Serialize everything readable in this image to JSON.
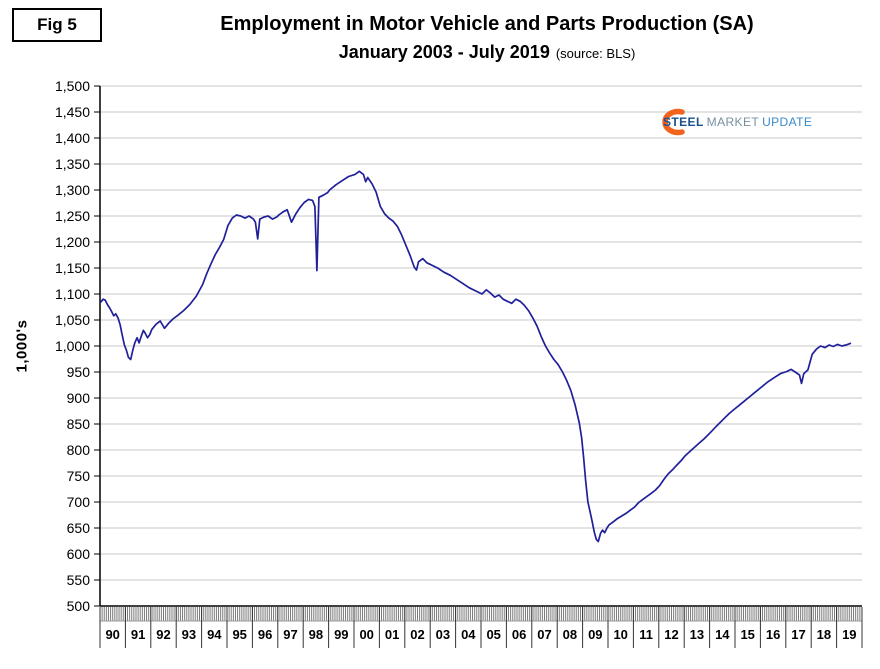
{
  "fig_label": "Fig 5",
  "header": {
    "title": "Employment in Motor Vehicle and Parts Production (SA)",
    "subtitle": "January 2003 - July 2019",
    "source": "(source: BLS)"
  },
  "logo": {
    "word1": "STEEL",
    "word2": "MARKET",
    "word3": "UPDATE",
    "swoosh_color": "#f2641e"
  },
  "chart_data": {
    "type": "line",
    "title": "Employment in Motor Vehicle and Parts Production (SA)",
    "subtitle": "January 2003 - July 2019",
    "source": "BLS",
    "ylabel": "1,000's",
    "ylim": [
      500,
      1500
    ],
    "ytick_step": 50,
    "grid": true,
    "legend_position": "none",
    "line_color": "#20209a",
    "grid_color": "#c8c8c8",
    "x_years": [
      "90",
      "91",
      "92",
      "93",
      "94",
      "95",
      "96",
      "97",
      "98",
      "99",
      "00",
      "01",
      "02",
      "03",
      "04",
      "05",
      "06",
      "07",
      "08",
      "09",
      "10",
      "11",
      "12",
      "13",
      "14",
      "15",
      "16",
      "17",
      "18",
      "19"
    ],
    "series": [
      {
        "name": "Employment in motor vehicle and parts production (thousands, SA)",
        "points": [
          [
            1990.0,
            1085
          ],
          [
            1990.08,
            1090
          ],
          [
            1990.17,
            1088
          ],
          [
            1990.25,
            1080
          ],
          [
            1990.33,
            1074
          ],
          [
            1990.42,
            1066
          ],
          [
            1990.5,
            1058
          ],
          [
            1990.58,
            1062
          ],
          [
            1990.67,
            1054
          ],
          [
            1990.75,
            1042
          ],
          [
            1990.83,
            1022
          ],
          [
            1990.92,
            1002
          ],
          [
            1991.0,
            992
          ],
          [
            1991.08,
            978
          ],
          [
            1991.17,
            974
          ],
          [
            1991.25,
            992
          ],
          [
            1991.33,
            1006
          ],
          [
            1991.42,
            1016
          ],
          [
            1991.5,
            1006
          ],
          [
            1991.58,
            1018
          ],
          [
            1991.67,
            1030
          ],
          [
            1991.75,
            1024
          ],
          [
            1991.83,
            1016
          ],
          [
            1991.92,
            1022
          ],
          [
            1992.0,
            1032
          ],
          [
            1992.17,
            1042
          ],
          [
            1992.33,
            1048
          ],
          [
            1992.5,
            1034
          ],
          [
            1992.67,
            1044
          ],
          [
            1992.83,
            1052
          ],
          [
            1993.0,
            1058
          ],
          [
            1993.25,
            1068
          ],
          [
            1993.5,
            1080
          ],
          [
            1993.75,
            1096
          ],
          [
            1994.0,
            1118
          ],
          [
            1994.17,
            1140
          ],
          [
            1994.33,
            1158
          ],
          [
            1994.5,
            1176
          ],
          [
            1994.67,
            1190
          ],
          [
            1994.83,
            1205
          ],
          [
            1995.0,
            1232
          ],
          [
            1995.17,
            1246
          ],
          [
            1995.33,
            1252
          ],
          [
            1995.5,
            1250
          ],
          [
            1995.67,
            1246
          ],
          [
            1995.83,
            1250
          ],
          [
            1996.0,
            1244
          ],
          [
            1996.08,
            1238
          ],
          [
            1996.17,
            1206
          ],
          [
            1996.25,
            1244
          ],
          [
            1996.42,
            1248
          ],
          [
            1996.58,
            1250
          ],
          [
            1996.75,
            1244
          ],
          [
            1996.92,
            1248
          ],
          [
            1997.0,
            1252
          ],
          [
            1997.17,
            1258
          ],
          [
            1997.33,
            1262
          ],
          [
            1997.5,
            1238
          ],
          [
            1997.67,
            1254
          ],
          [
            1997.83,
            1266
          ],
          [
            1998.0,
            1276
          ],
          [
            1998.17,
            1282
          ],
          [
            1998.33,
            1280
          ],
          [
            1998.42,
            1268
          ],
          [
            1998.5,
            1145
          ],
          [
            1998.58,
            1286
          ],
          [
            1998.75,
            1290
          ],
          [
            1998.92,
            1295
          ],
          [
            1999.0,
            1300
          ],
          [
            1999.25,
            1310
          ],
          [
            1999.5,
            1318
          ],
          [
            1999.75,
            1326
          ],
          [
            2000.0,
            1330
          ],
          [
            2000.17,
            1336
          ],
          [
            2000.33,
            1330
          ],
          [
            2000.42,
            1316
          ],
          [
            2000.5,
            1324
          ],
          [
            2000.67,
            1312
          ],
          [
            2000.83,
            1296
          ],
          [
            2001.0,
            1268
          ],
          [
            2001.17,
            1254
          ],
          [
            2001.33,
            1246
          ],
          [
            2001.5,
            1240
          ],
          [
            2001.67,
            1230
          ],
          [
            2001.83,
            1214
          ],
          [
            2002.0,
            1194
          ],
          [
            2002.17,
            1174
          ],
          [
            2002.33,
            1152
          ],
          [
            2002.42,
            1146
          ],
          [
            2002.5,
            1162
          ],
          [
            2002.67,
            1168
          ],
          [
            2002.83,
            1160
          ],
          [
            2003.0,
            1156
          ],
          [
            2003.25,
            1150
          ],
          [
            2003.5,
            1142
          ],
          [
            2003.75,
            1136
          ],
          [
            2004.0,
            1128
          ],
          [
            2004.25,
            1120
          ],
          [
            2004.5,
            1112
          ],
          [
            2004.75,
            1106
          ],
          [
            2005.0,
            1100
          ],
          [
            2005.17,
            1108
          ],
          [
            2005.33,
            1102
          ],
          [
            2005.5,
            1094
          ],
          [
            2005.67,
            1098
          ],
          [
            2005.83,
            1090
          ],
          [
            2006.0,
            1086
          ],
          [
            2006.17,
            1082
          ],
          [
            2006.33,
            1090
          ],
          [
            2006.5,
            1086
          ],
          [
            2006.67,
            1078
          ],
          [
            2006.83,
            1068
          ],
          [
            2007.0,
            1054
          ],
          [
            2007.17,
            1038
          ],
          [
            2007.33,
            1018
          ],
          [
            2007.5,
            1000
          ],
          [
            2007.67,
            986
          ],
          [
            2007.83,
            974
          ],
          [
            2008.0,
            964
          ],
          [
            2008.17,
            950
          ],
          [
            2008.33,
            934
          ],
          [
            2008.5,
            914
          ],
          [
            2008.67,
            886
          ],
          [
            2008.83,
            852
          ],
          [
            2008.92,
            824
          ],
          [
            2009.0,
            786
          ],
          [
            2009.08,
            742
          ],
          [
            2009.17,
            700
          ],
          [
            2009.25,
            682
          ],
          [
            2009.33,
            664
          ],
          [
            2009.42,
            642
          ],
          [
            2009.5,
            628
          ],
          [
            2009.58,
            624
          ],
          [
            2009.67,
            640
          ],
          [
            2009.75,
            646
          ],
          [
            2009.83,
            641
          ],
          [
            2009.92,
            650
          ],
          [
            2010.0,
            656
          ],
          [
            2010.17,
            662
          ],
          [
            2010.33,
            668
          ],
          [
            2010.5,
            673
          ],
          [
            2010.67,
            678
          ],
          [
            2010.83,
            684
          ],
          [
            2011.0,
            690
          ],
          [
            2011.17,
            699
          ],
          [
            2011.33,
            705
          ],
          [
            2011.5,
            711
          ],
          [
            2011.67,
            717
          ],
          [
            2011.83,
            723
          ],
          [
            2012.0,
            732
          ],
          [
            2012.17,
            744
          ],
          [
            2012.33,
            754
          ],
          [
            2012.5,
            762
          ],
          [
            2012.67,
            771
          ],
          [
            2012.83,
            779
          ],
          [
            2013.0,
            789
          ],
          [
            2013.25,
            800
          ],
          [
            2013.5,
            811
          ],
          [
            2013.75,
            822
          ],
          [
            2014.0,
            834
          ],
          [
            2014.25,
            847
          ],
          [
            2014.5,
            859
          ],
          [
            2014.75,
            871
          ],
          [
            2015.0,
            881
          ],
          [
            2015.25,
            891
          ],
          [
            2015.5,
            901
          ],
          [
            2015.75,
            911
          ],
          [
            2016.0,
            921
          ],
          [
            2016.25,
            931
          ],
          [
            2016.5,
            939
          ],
          [
            2016.75,
            947
          ],
          [
            2017.0,
            951
          ],
          [
            2017.17,
            955
          ],
          [
            2017.33,
            950
          ],
          [
            2017.5,
            944
          ],
          [
            2017.58,
            928
          ],
          [
            2017.67,
            947
          ],
          [
            2017.83,
            954
          ],
          [
            2018.0,
            984
          ],
          [
            2018.17,
            994
          ],
          [
            2018.33,
            1000
          ],
          [
            2018.5,
            997
          ],
          [
            2018.67,
            1002
          ],
          [
            2018.83,
            999
          ],
          [
            2019.0,
            1003
          ],
          [
            2019.17,
            1000
          ],
          [
            2019.33,
            1002
          ],
          [
            2019.5,
            1005
          ]
        ]
      }
    ]
  }
}
